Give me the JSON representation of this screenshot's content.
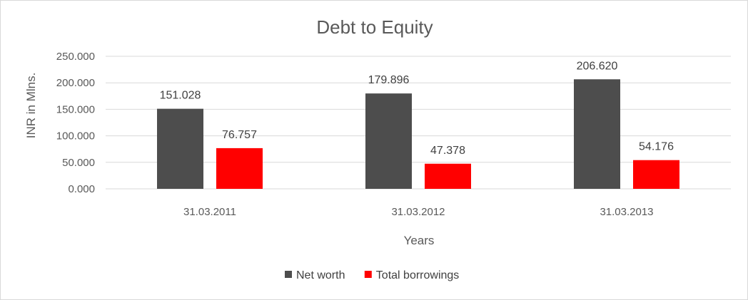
{
  "chart_data": {
    "type": "bar",
    "title": "Debt to Equity",
    "xlabel": "Years",
    "ylabel": "INR in Mlns.",
    "categories": [
      "31.03.2011",
      "31.03.2012",
      "31.03.2013"
    ],
    "series": [
      {
        "name": "Net worth",
        "values": [
          151.028,
          179.896,
          206.62
        ],
        "labels": [
          "151.028",
          "179.896",
          "206.620"
        ],
        "color": "#4d4d4d"
      },
      {
        "name": "Total borrowings",
        "values": [
          76.757,
          47.378,
          54.176
        ],
        "labels": [
          "76.757",
          "47.378",
          "54.176"
        ],
        "color": "#ff0000"
      }
    ],
    "ylim": [
      0,
      250
    ],
    "yticks": [
      "0.000",
      "50.000",
      "100.000",
      "150.000",
      "200.000",
      "250.000"
    ],
    "grid": true,
    "legend": "bottom",
    "colors": {
      "gridline": "#d9d9d9",
      "text": "#595959"
    }
  }
}
